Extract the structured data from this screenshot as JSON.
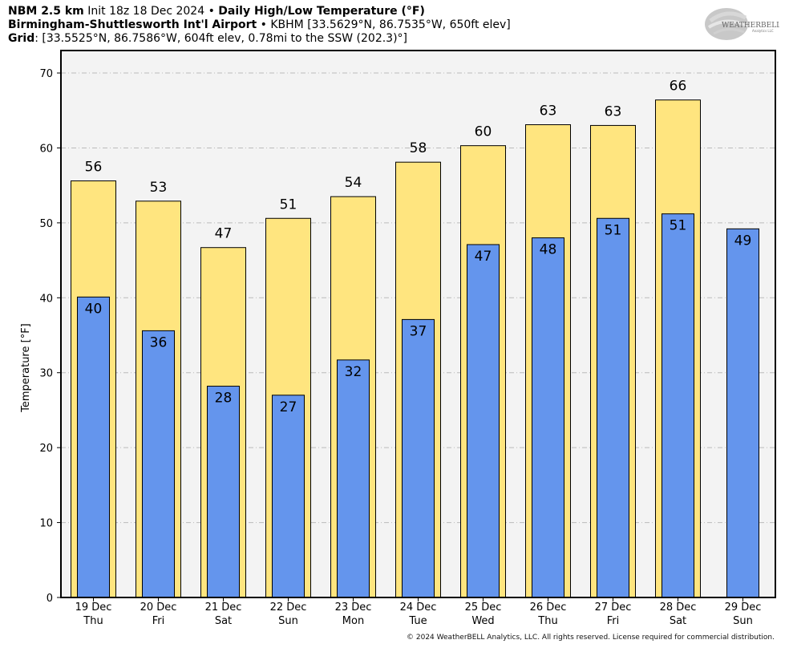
{
  "header": {
    "model": "NBM 2.5 km",
    "init": "Init 18z 18 Dec 2024",
    "bullet": "•",
    "product": "Daily High/Low Temperature (°F)",
    "station_name": "Birmingham-Shuttlesworth Int'l Airport",
    "station_info": "KBHM [33.5629°N, 86.7535°W, 650ft elev]",
    "grid_label": "Grid",
    "grid_info": ": [33.5525°N, 86.7586°W, 604ft elev, 0.78mi to the SSW (202.3)°]"
  },
  "logo": {
    "text": "WEATHERBELL",
    "sub": "Analytics LLC"
  },
  "copyright": "© 2024 WeatherBELL Analytics, LLC. All rights reserved. License required for commercial distribution.",
  "colors": {
    "high": "#ffe57f",
    "low": "#6495ed",
    "plot_bg": "#f3f3f3",
    "grid": "#bbbbbb"
  },
  "chart_data": {
    "type": "bar",
    "ylabel": "Temperature [°F]",
    "ylim": [
      0,
      73
    ],
    "yticks": [
      0,
      10,
      20,
      30,
      40,
      50,
      60,
      70
    ],
    "grid": true,
    "categories": [
      "19 Dec",
      "20 Dec",
      "21 Dec",
      "22 Dec",
      "23 Dec",
      "24 Dec",
      "25 Dec",
      "26 Dec",
      "27 Dec",
      "28 Dec",
      "29 Dec"
    ],
    "weekdays": [
      "Thu",
      "Fri",
      "Sat",
      "Sun",
      "Mon",
      "Tue",
      "Wed",
      "Thu",
      "Fri",
      "Sat",
      "Sun"
    ],
    "series": [
      {
        "values": [
          55.6,
          52.9,
          46.7,
          50.6,
          53.5,
          58.1,
          60.3,
          63.1,
          63.0,
          66.4,
          null
        ],
        "labels": [
          "56",
          "53",
          "47",
          "51",
          "54",
          "58",
          "60",
          "63",
          "63",
          "66",
          null
        ]
      },
      {
        "values": [
          40.1,
          35.6,
          28.2,
          27.0,
          31.7,
          37.1,
          47.1,
          48.0,
          50.6,
          51.2,
          49.2
        ],
        "labels": [
          "40",
          "36",
          "28",
          "27",
          "32",
          "37",
          "47",
          "48",
          "51",
          "51",
          "49"
        ]
      }
    ]
  }
}
